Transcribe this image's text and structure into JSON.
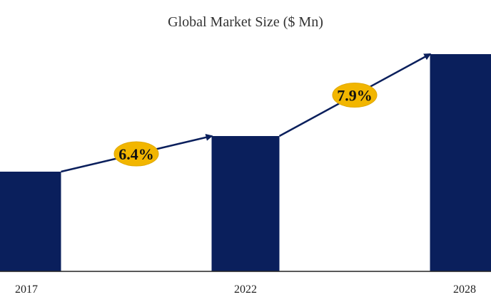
{
  "chart_data": {
    "type": "bar",
    "title": "Global Market Size ($ Mn)",
    "categories": [
      "2017",
      "2022",
      "2028"
    ],
    "values": [
      140,
      190,
      305
    ],
    "value_units": "relative (no y-axis printed)",
    "xlabel": "",
    "ylabel": "",
    "grid": false,
    "legend": "none",
    "growth_annotations": [
      {
        "from": "2017",
        "to": "2022",
        "label": "6.4%"
      },
      {
        "from": "2022",
        "to": "2028",
        "label": "7.9%"
      }
    ],
    "colors": {
      "bar": "#0a1f5c",
      "arrow": "#0a1f5c",
      "badge_fill": "#f2b600",
      "badge_text": "#111111",
      "axis": "#222222",
      "title": "#333333"
    }
  }
}
